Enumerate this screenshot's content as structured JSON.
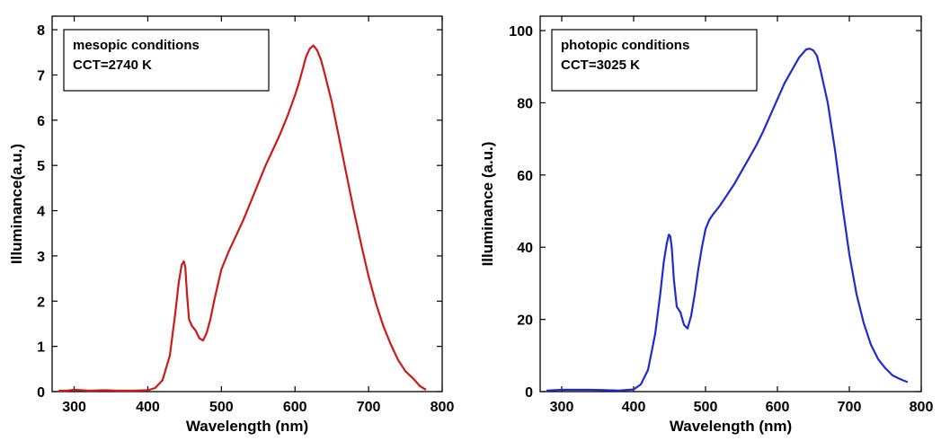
{
  "chart_data": [
    {
      "type": "line",
      "annotation": [
        "mesopic conditions",
        "CCT=2740 K"
      ],
      "xlabel": "Wavelength (nm)",
      "ylabel": "Illuminance(a.u.)",
      "xlim": [
        270,
        800
      ],
      "ylim": [
        0,
        8.3
      ],
      "xticks": [
        300,
        400,
        500,
        600,
        700,
        800
      ],
      "yticks": [
        0,
        1,
        2,
        3,
        4,
        5,
        6,
        7,
        8
      ],
      "grid": false,
      "series": [
        {
          "color": "#cc1a1a",
          "x": [
            280,
            290,
            300,
            320,
            340,
            360,
            380,
            400,
            410,
            420,
            430,
            437,
            442,
            446,
            449,
            451,
            453,
            456,
            460,
            465,
            470,
            475,
            480,
            485,
            490,
            495,
            500,
            510,
            520,
            530,
            540,
            550,
            560,
            570,
            580,
            590,
            600,
            605,
            610,
            615,
            620,
            625,
            630,
            635,
            640,
            650,
            660,
            670,
            680,
            690,
            700,
            710,
            720,
            730,
            740,
            750,
            760,
            770,
            777
          ],
          "y": [
            0.02,
            0.02,
            0.04,
            0.02,
            0.03,
            0.02,
            0.02,
            0.03,
            0.08,
            0.25,
            0.8,
            1.7,
            2.4,
            2.8,
            2.88,
            2.75,
            2.2,
            1.6,
            1.45,
            1.35,
            1.18,
            1.13,
            1.3,
            1.6,
            2.0,
            2.35,
            2.7,
            3.1,
            3.45,
            3.8,
            4.2,
            4.6,
            5.0,
            5.35,
            5.7,
            6.1,
            6.55,
            6.8,
            7.1,
            7.4,
            7.58,
            7.65,
            7.55,
            7.35,
            7.05,
            6.4,
            5.6,
            4.8,
            4.0,
            3.25,
            2.55,
            1.95,
            1.45,
            1.05,
            0.7,
            0.45,
            0.3,
            0.12,
            0.05
          ]
        }
      ]
    },
    {
      "type": "line",
      "annotation": [
        "photopic conditions",
        "CCT=3025 K"
      ],
      "xlabel": "Wavelength (nm)",
      "ylabel": "Illuminance (a.u.)",
      "xlim": [
        270,
        800
      ],
      "ylim": [
        0,
        104
      ],
      "xticks": [
        300,
        400,
        500,
        600,
        700,
        800
      ],
      "yticks": [
        0,
        20,
        40,
        60,
        80,
        100
      ],
      "grid": false,
      "series": [
        {
          "color": "#1f2bd1",
          "x": [
            280,
            300,
            320,
            340,
            360,
            380,
            400,
            410,
            420,
            430,
            437,
            442,
            446,
            449,
            451,
            453,
            456,
            460,
            465,
            470,
            475,
            480,
            485,
            490,
            495,
            500,
            505,
            510,
            520,
            530,
            540,
            550,
            560,
            570,
            580,
            590,
            600,
            610,
            620,
            630,
            640,
            645,
            650,
            655,
            660,
            670,
            680,
            690,
            700,
            710,
            720,
            730,
            740,
            750,
            760,
            770,
            780
          ],
          "y": [
            0.3,
            0.5,
            0.5,
            0.5,
            0.4,
            0.3,
            0.6,
            2.0,
            6.0,
            16.0,
            27.0,
            36.0,
            41.0,
            43.5,
            43.0,
            40.0,
            31.0,
            23.5,
            22.0,
            18.5,
            17.5,
            21.0,
            27.0,
            34.0,
            40.0,
            45.0,
            47.5,
            49.0,
            51.5,
            54.5,
            57.5,
            61.0,
            64.5,
            68.0,
            72.0,
            76.5,
            81.0,
            85.5,
            89.0,
            92.5,
            94.8,
            95.0,
            94.5,
            93.0,
            89.0,
            80.0,
            67.0,
            52.0,
            38.0,
            27.0,
            19.0,
            13.0,
            9.0,
            6.5,
            4.5,
            3.5,
            2.7
          ]
        }
      ]
    }
  ]
}
